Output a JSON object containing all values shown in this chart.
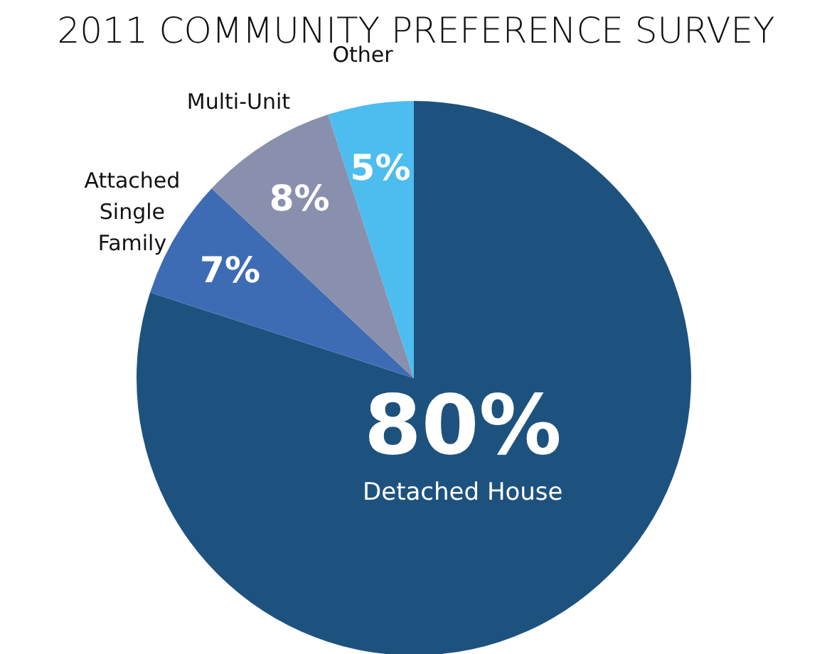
{
  "chart_data": {
    "type": "pie",
    "title": "2011 COMMUNITY PREFERENCE SURVEY",
    "categories": [
      "Detached House",
      "Attached Single Family",
      "Multi-Unit",
      "Other"
    ],
    "values": [
      80,
      7,
      8,
      5
    ],
    "colors": [
      "#1d527f",
      "#3e6cb4",
      "#8990ad",
      "#4cbdee"
    ],
    "value_labels": [
      "80%",
      "7%",
      "8%",
      "5%"
    ]
  }
}
